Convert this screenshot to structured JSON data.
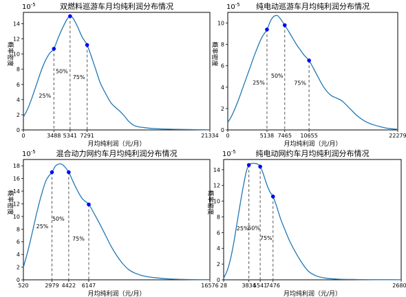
{
  "chart_data": [
    {
      "type": "line",
      "title": "双燃料巡游车月均纯利润分布情况",
      "xlabel": "月均纯利润（元/月）",
      "ylabel": "概率密度",
      "y_scale_label": "10^-5",
      "xlim": [
        0,
        21334
      ],
      "ylim": [
        0,
        15.5
      ],
      "xticks": [
        0,
        3488,
        5341,
        7291,
        21334
      ],
      "yticks": [
        0,
        2,
        4,
        6,
        8,
        10,
        12,
        14
      ],
      "series": [
        {
          "x": [
            0,
            500,
            1000,
            1500,
            2000,
            2500,
            3000,
            3488,
            4000,
            4500,
            5000,
            5341,
            5700,
            6200,
            6700,
            7291,
            7800,
            8300,
            8800,
            9500,
            10000,
            10500,
            11000,
            11500,
            12000,
            12500,
            13000,
            14000,
            15000,
            17000,
            19000,
            21334
          ],
          "y": [
            1.7,
            2.8,
            4.3,
            6.0,
            7.7,
            9.1,
            10.1,
            10.7,
            12.2,
            13.5,
            14.6,
            15.0,
            14.7,
            13.6,
            12.3,
            11.2,
            9.6,
            7.9,
            6.2,
            4.6,
            3.6,
            3.0,
            2.5,
            1.9,
            1.2,
            0.7,
            0.45,
            0.28,
            0.18,
            0.09,
            0.05,
            0.02
          ]
        }
      ],
      "quantiles": [
        {
          "label": "25%",
          "x": 3488,
          "y": 10.7
        },
        {
          "label": "50%",
          "x": 5341,
          "y": 15.0
        },
        {
          "label": "75%",
          "x": 7291,
          "y": 11.2
        }
      ]
    },
    {
      "type": "line",
      "title": "纯电动巡游车月均纯利润分布情况",
      "xlabel": "月均纯利润（元/月）",
      "ylabel": "概率密度",
      "y_scale_label": "10^-5",
      "xlim": [
        0,
        22279
      ],
      "ylim": [
        0,
        11
      ],
      "xticks": [
        0,
        5138,
        7465,
        10655,
        22279
      ],
      "yticks": [
        0,
        2,
        4,
        6,
        8,
        10
      ],
      "series": [
        {
          "x": [
            0,
            500,
            1000,
            1500,
            2000,
            2500,
            3000,
            3500,
            4000,
            4500,
            5138,
            5600,
            6000,
            6500,
            7000,
            7465,
            8000,
            8500,
            9000,
            9500,
            10000,
            10655,
            11200,
            11800,
            12400,
            13000,
            13600,
            14200,
            15000,
            16000,
            17000,
            18000,
            19000,
            20000,
            21000,
            22279
          ],
          "y": [
            0.7,
            1.3,
            2.1,
            3.0,
            4.0,
            5.0,
            6.0,
            7.0,
            7.9,
            8.7,
            9.4,
            10.2,
            10.6,
            10.7,
            10.3,
            9.8,
            9.2,
            8.6,
            8.0,
            7.5,
            7.0,
            6.5,
            5.8,
            5.0,
            4.2,
            3.6,
            3.2,
            3.0,
            2.7,
            2.0,
            1.3,
            0.8,
            0.5,
            0.3,
            0.15,
            0.05
          ]
        }
      ],
      "quantiles": [
        {
          "label": "25%",
          "x": 5138,
          "y": 9.4
        },
        {
          "label": "50%",
          "x": 7465,
          "y": 9.8
        },
        {
          "label": "75%",
          "x": 10655,
          "y": 6.5
        }
      ]
    },
    {
      "type": "line",
      "title": "混合动力网约车月均纯利润分布情况",
      "xlabel": "月均纯利润（元/月）",
      "ylabel": "概率密度",
      "y_scale_label": "10^-5",
      "xlim": [
        520,
        16576
      ],
      "ylim": [
        0,
        19
      ],
      "xticks": [
        520,
        2979,
        4422,
        6147,
        16576
      ],
      "yticks": [
        0,
        2,
        4,
        6,
        8,
        10,
        12,
        14,
        16,
        18
      ],
      "series": [
        {
          "x": [
            520,
            900,
            1300,
            1700,
            2100,
            2500,
            2979,
            3300,
            3700,
            4000,
            4422,
            4800,
            5200,
            5600,
            6147,
            6600,
            7100,
            7600,
            8100,
            8600,
            9100,
            9600,
            10200,
            11000,
            12000,
            13000,
            14000,
            15000,
            16576
          ],
          "y": [
            2.0,
            4.5,
            7.6,
            10.8,
            13.6,
            15.8,
            17.0,
            18.0,
            18.3,
            18.0,
            17.0,
            15.5,
            14.0,
            12.8,
            11.9,
            10.5,
            8.8,
            7.0,
            5.2,
            3.7,
            2.5,
            1.6,
            1.0,
            0.55,
            0.3,
            0.15,
            0.08,
            0.04,
            0.02
          ]
        }
      ],
      "quantiles": [
        {
          "label": "25%",
          "x": 2979,
          "y": 17.0
        },
        {
          "label": "50%",
          "x": 4422,
          "y": 17.0
        },
        {
          "label": "75%",
          "x": 6147,
          "y": 11.9
        }
      ]
    },
    {
      "type": "line",
      "title": "纯电动网约车月均纯利润分布情况",
      "xlabel": "月均纯利润（元/月）",
      "ylabel": "概率密度",
      "y_scale_label": "10^-5",
      "xlim": [
        28,
        26807
      ],
      "ylim": [
        0,
        15.3
      ],
      "xticks": [
        28,
        3834,
        5541,
        7476,
        26807
      ],
      "xtick_labels": [
        "28",
        "3834",
        "5541",
        "7476",
        "26807"
      ],
      "yticks": [
        0,
        2,
        4,
        6,
        8,
        10,
        12,
        14
      ],
      "series": [
        {
          "x": [
            28,
            700,
            1400,
            2100,
            2800,
            3400,
            3834,
            4300,
            4800,
            5200,
            5541,
            6000,
            6500,
            7000,
            7476,
            8000,
            8600,
            9300,
            10000,
            10800,
            11800,
            12800,
            14000,
            15500,
            17500,
            20000,
            23000,
            26807
          ],
          "y": [
            0.2,
            1.5,
            4.0,
            7.5,
            11.0,
            13.6,
            14.6,
            14.8,
            14.8,
            14.7,
            14.4,
            13.5,
            12.2,
            11.2,
            10.6,
            9.4,
            7.8,
            6.3,
            4.9,
            3.6,
            2.2,
            1.1,
            0.5,
            0.2,
            0.08,
            0.04,
            0.02,
            0.01
          ]
        }
      ],
      "quantiles": [
        {
          "label": "25%",
          "x": 3834,
          "y": 14.6
        },
        {
          "label": "50%",
          "x": 5541,
          "y": 14.4
        },
        {
          "label": "75%",
          "x": 7476,
          "y": 10.6
        }
      ]
    }
  ]
}
